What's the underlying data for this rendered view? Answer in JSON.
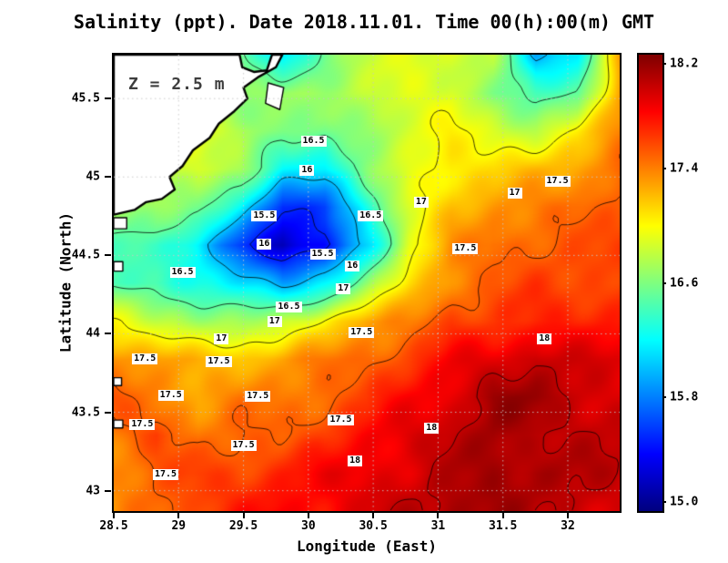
{
  "chart_data": {
    "type": "heatmap",
    "title": "Salinity (ppt). Date 2018.11.01. Time 00(h):00(m) GMT",
    "variable": "Salinity",
    "units": "ppt",
    "depth_label": "Z = 2.5 m",
    "xlabel": "Longitude (East)",
    "ylabel": "Latitude (North)",
    "xlim": [
      28.5,
      32.4
    ],
    "ylim": [
      42.87,
      45.78
    ],
    "x_tick_labels": [
      "28.5",
      "29",
      "29.5",
      "30",
      "30.5",
      "31",
      "31.5",
      "32"
    ],
    "y_tick_labels": [
      "43",
      "43.5",
      "44",
      "44.5",
      "45",
      "45.5"
    ],
    "grid_on": true,
    "colorbar": {
      "min": 15.0,
      "max": 18.2,
      "tick_labels": [
        "18.2",
        "17.4",
        "16.6",
        "15.8",
        "15.0"
      ],
      "stops": [
        {
          "value": 15.0,
          "color": "#00007F"
        },
        {
          "value": 15.4,
          "color": "#0000FF"
        },
        {
          "value": 16.2,
          "color": "#00FFFF"
        },
        {
          "value": 16.6,
          "color": "#7FFF7F"
        },
        {
          "value": 17.0,
          "color": "#FFFF00"
        },
        {
          "value": 17.4,
          "color": "#FF7F00"
        },
        {
          "value": 17.8,
          "color": "#FF0000"
        },
        {
          "value": 18.2,
          "color": "#7F0000"
        }
      ]
    },
    "grid": {
      "lon": [
        28.5,
        28.83,
        29.15,
        29.48,
        29.8,
        30.13,
        30.45,
        30.78,
        31.1,
        31.43,
        31.75,
        32.08,
        32.4
      ],
      "lat": [
        45.78,
        45.54,
        45.3,
        45.05,
        44.81,
        44.57,
        44.33,
        44.08,
        43.84,
        43.6,
        43.36,
        43.11,
        42.87
      ],
      "values": [
        [
          16.8,
          16.8,
          16.8,
          16.5,
          16.1,
          16.6,
          16.8,
          16.9,
          16.9,
          16.8,
          15.9,
          16.2,
          17.3
        ],
        [
          16.8,
          16.8,
          16.7,
          16.6,
          16.7,
          16.7,
          16.8,
          16.9,
          16.9,
          16.6,
          16.4,
          16.5,
          17.3
        ],
        [
          16.9,
          16.9,
          16.9,
          16.8,
          16.6,
          16.5,
          16.7,
          16.9,
          17.0,
          16.9,
          16.8,
          17.0,
          17.4
        ],
        [
          16.9,
          16.9,
          16.9,
          16.7,
          16.2,
          16.2,
          16.6,
          16.9,
          17.1,
          17.1,
          17.2,
          17.3,
          17.5
        ],
        [
          16.7,
          16.7,
          16.6,
          16.2,
          15.5,
          15.6,
          16.3,
          16.9,
          17.2,
          17.3,
          17.4,
          17.5,
          17.5
        ],
        [
          16.5,
          16.4,
          16.1,
          15.6,
          15.2,
          15.4,
          16.1,
          16.9,
          17.3,
          17.5,
          17.5,
          17.5,
          17.6
        ],
        [
          16.4,
          16.4,
          16.3,
          16.1,
          15.9,
          16.2,
          16.6,
          17.1,
          17.4,
          17.5,
          17.6,
          17.6,
          17.6
        ],
        [
          17.0,
          16.8,
          16.7,
          16.7,
          16.8,
          17.0,
          17.3,
          17.4,
          17.6,
          17.6,
          17.7,
          17.7,
          17.7
        ],
        [
          17.4,
          17.3,
          17.2,
          17.2,
          17.3,
          17.4,
          17.5,
          17.6,
          17.8,
          17.9,
          18.0,
          17.9,
          17.9
        ],
        [
          17.5,
          17.4,
          17.3,
          17.4,
          17.4,
          17.5,
          17.6,
          17.8,
          17.9,
          18.1,
          18.1,
          18.0,
          17.9
        ],
        [
          17.4,
          17.6,
          17.4,
          17.5,
          17.5,
          17.6,
          17.8,
          17.9,
          18.0,
          18.1,
          18.0,
          18.0,
          18.0
        ],
        [
          17.4,
          17.5,
          17.6,
          17.6,
          17.7,
          17.8,
          17.9,
          17.9,
          18.0,
          18.1,
          18.1,
          18.0,
          18.0
        ],
        [
          17.3,
          17.5,
          17.6,
          17.7,
          17.8,
          17.8,
          17.9,
          18.0,
          18.1,
          18.1,
          18.0,
          18.0,
          17.9
        ]
      ]
    },
    "contour_levels": [
      15.5,
      16,
      16.5,
      17,
      17.5,
      18
    ],
    "contour_labels": [
      {
        "v": "16.5",
        "lon": 30.04,
        "lat": 45.23
      },
      {
        "v": "16",
        "lon": 29.99,
        "lat": 45.04
      },
      {
        "v": "17",
        "lon": 30.87,
        "lat": 44.84
      },
      {
        "v": "17",
        "lon": 31.59,
        "lat": 44.9
      },
      {
        "v": "17.5",
        "lon": 31.92,
        "lat": 44.97
      },
      {
        "v": "15.5",
        "lon": 29.66,
        "lat": 44.75
      },
      {
        "v": "16.5",
        "lon": 30.48,
        "lat": 44.75
      },
      {
        "v": "16",
        "lon": 29.66,
        "lat": 44.57
      },
      {
        "v": "15.5",
        "lon": 30.11,
        "lat": 44.51
      },
      {
        "v": "16",
        "lon": 30.34,
        "lat": 44.43
      },
      {
        "v": "16.5",
        "lon": 29.03,
        "lat": 44.39
      },
      {
        "v": "17",
        "lon": 30.27,
        "lat": 44.29
      },
      {
        "v": "17.5",
        "lon": 31.21,
        "lat": 44.54
      },
      {
        "v": "16.5",
        "lon": 29.85,
        "lat": 44.17
      },
      {
        "v": "17",
        "lon": 29.74,
        "lat": 44.08
      },
      {
        "v": "17",
        "lon": 29.33,
        "lat": 43.97
      },
      {
        "v": "17.5",
        "lon": 30.41,
        "lat": 44.01
      },
      {
        "v": "17.5",
        "lon": 28.74,
        "lat": 43.84
      },
      {
        "v": "17.5",
        "lon": 29.31,
        "lat": 43.82
      },
      {
        "v": "18",
        "lon": 31.82,
        "lat": 43.97
      },
      {
        "v": "17.5",
        "lon": 28.94,
        "lat": 43.61
      },
      {
        "v": "17.5",
        "lon": 29.61,
        "lat": 43.6
      },
      {
        "v": "17.5",
        "lon": 30.25,
        "lat": 43.45
      },
      {
        "v": "18",
        "lon": 30.95,
        "lat": 43.4
      },
      {
        "v": "17.5",
        "lon": 28.72,
        "lat": 43.42
      },
      {
        "v": "17.5",
        "lon": 29.5,
        "lat": 43.29
      },
      {
        "v": "18",
        "lon": 30.36,
        "lat": 43.19
      },
      {
        "v": "17.5",
        "lon": 28.9,
        "lat": 43.1
      }
    ],
    "land": {
      "coast_polygons": [
        [
          [
            28.5,
            45.78
          ],
          [
            29.47,
            45.78
          ],
          [
            29.49,
            45.7
          ],
          [
            29.58,
            45.67
          ],
          [
            29.68,
            45.68
          ],
          [
            29.72,
            45.78
          ],
          [
            29.8,
            45.78
          ],
          [
            29.75,
            45.7
          ],
          [
            29.62,
            45.64
          ],
          [
            29.5,
            45.57
          ],
          [
            29.53,
            45.5
          ],
          [
            29.43,
            45.42
          ],
          [
            29.31,
            45.34
          ],
          [
            29.24,
            45.25
          ],
          [
            29.11,
            45.17
          ],
          [
            29.03,
            45.07
          ],
          [
            28.93,
            45.0
          ],
          [
            28.97,
            44.92
          ],
          [
            28.87,
            44.86
          ],
          [
            28.75,
            44.84
          ],
          [
            28.66,
            44.79
          ],
          [
            28.5,
            44.76
          ]
        ]
      ],
      "minor_polygons": [
        [
          [
            29.69,
            45.6
          ],
          [
            29.81,
            45.57
          ],
          [
            29.78,
            45.43
          ],
          [
            29.67,
            45.47
          ]
        ],
        [
          [
            28.5,
            44.74
          ],
          [
            28.6,
            44.74
          ],
          [
            28.6,
            44.67
          ],
          [
            28.5,
            44.67
          ]
        ],
        [
          [
            28.5,
            44.46
          ],
          [
            28.57,
            44.46
          ],
          [
            28.57,
            44.4
          ],
          [
            28.5,
            44.4
          ]
        ],
        [
          [
            28.5,
            43.72
          ],
          [
            28.56,
            43.72
          ],
          [
            28.56,
            43.67
          ],
          [
            28.5,
            43.67
          ]
        ],
        [
          [
            28.5,
            43.45
          ],
          [
            28.57,
            43.45
          ],
          [
            28.57,
            43.4
          ],
          [
            28.5,
            43.4
          ]
        ]
      ]
    }
  }
}
